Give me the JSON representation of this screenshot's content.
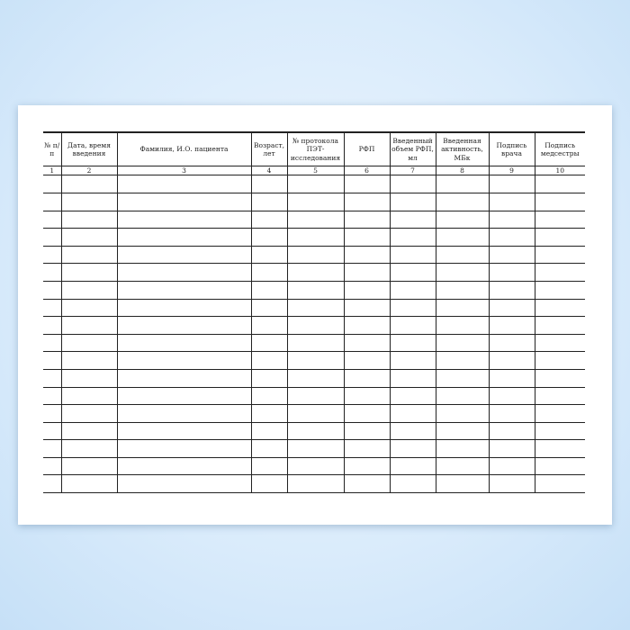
{
  "columns": [
    {
      "header": "№ п/п",
      "number": "1"
    },
    {
      "header": "Дата, время введения",
      "number": "2"
    },
    {
      "header": "Фамилия, И.О. пациента",
      "number": "3"
    },
    {
      "header": "Возраст, лет",
      "number": "4"
    },
    {
      "header": "№ протокола ПЭТ-исследования",
      "number": "5"
    },
    {
      "header": "РФП",
      "number": "6"
    },
    {
      "header": "Введенный объем РФП, мл",
      "number": "7"
    },
    {
      "header": "Введенная активность, МБк",
      "number": "8"
    },
    {
      "header": "Подпись врача",
      "number": "9"
    },
    {
      "header": "Подпись медсестры",
      "number": "10"
    }
  ],
  "empty_rows": 18
}
